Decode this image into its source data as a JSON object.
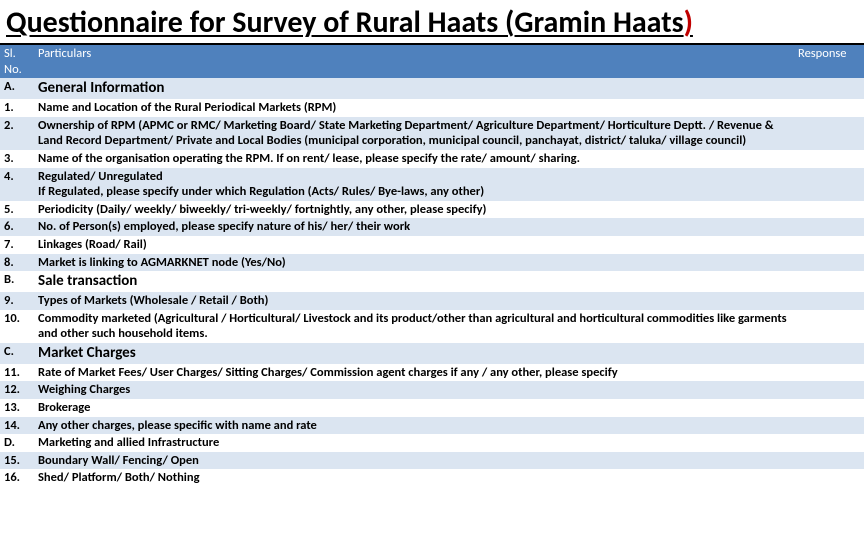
{
  "title_main": "Questionnaire for Survey of Rural Haats  (Gramin Haats",
  "title_paren_close": ")",
  "header": {
    "sl": "Sl. No.",
    "part": "Particulars",
    "resp": "Response"
  },
  "rows": [
    {
      "sl": "A.",
      "txt": "General Information",
      "section": true,
      "alt": true
    },
    {
      "sl": "1.",
      "txt": "Name and Location of the Rural Periodical Markets (RPM)",
      "bold": true,
      "alt": false
    },
    {
      "sl": "2.",
      "txt": "Ownership of RPM (APMC or RMC/ Marketing Board/ State Marketing Department/ Agriculture Department/ Horticulture Deptt. / Revenue & Land Record Department/ Private and Local Bodies (municipal corporation, municipal council, panchayat, district/ taluka/ village council)",
      "bold": true,
      "alt": true
    },
    {
      "sl": "3.",
      "txt": "Name of the organisation operating the RPM. If on rent/ lease, please specify the rate/ amount/ sharing.",
      "bold": true,
      "alt": false
    },
    {
      "sl": "4.",
      "txt": "Regulated/ Unregulated\nIf Regulated, please specify under which Regulation (Acts/ Rules/ Bye-laws, any other)",
      "bold": true,
      "alt": true
    },
    {
      "sl": "5.",
      "txt": "Periodicity (Daily/ weekly/ biweekly/ tri-weekly/ fortnightly, any other, please specify)",
      "bold": true,
      "alt": false
    },
    {
      "sl": "6.",
      "txt": "No. of Person(s) employed, please specify nature of his/ her/ their work",
      "bold": true,
      "alt": true
    },
    {
      "sl": "7.",
      "txt": "Linkages (Road/ Rail)",
      "bold": true,
      "alt": false
    },
    {
      "sl": "8.",
      "txt": "Market is linking to AGMARKNET node (Yes/No)",
      "bold": true,
      "alt": true
    },
    {
      "sl": "B.",
      "txt": "Sale transaction",
      "section": true,
      "alt": false
    },
    {
      "sl": "9.",
      "txt": "Types of Markets (Wholesale / Retail / Both)",
      "bold": true,
      "alt": true
    },
    {
      "sl": "10.",
      "txt": "Commodity marketed (Agricultural / Horticultural/ Livestock and its product/other than agricultural and horticultural commodities like garments and other such household items.",
      "bold": true,
      "alt": false
    },
    {
      "sl": "C.",
      "txt": "Market Charges",
      "section": true,
      "alt": true
    },
    {
      "sl": "11.",
      "txt": "Rate of Market Fees/ User Charges/ Sitting Charges/ Commission agent charges if any / any other, please specify",
      "bold": true,
      "alt": false
    },
    {
      "sl": "12.",
      "txt": "Weighing Charges",
      "bold": true,
      "alt": true
    },
    {
      "sl": "13.",
      "txt": "Brokerage",
      "bold": true,
      "alt": false
    },
    {
      "sl": "14.",
      "txt": "Any other charges, please specific with name and rate",
      "bold": true,
      "alt": true
    },
    {
      "sl": "D.",
      "txt": "Marketing and allied Infrastructure",
      "bold": true,
      "alt": false
    },
    {
      "sl": "15.",
      "txt": "Boundary Wall/ Fencing/ Open",
      "bold": true,
      "alt": true
    },
    {
      "sl": "16.",
      "txt": "Shed/ Platform/ Both/ Nothing",
      "bold": true,
      "alt": false
    }
  ],
  "colors": {
    "header_bg": "#4f81bd",
    "alt_bg": "#dbe5f1",
    "paren": "#c00000"
  }
}
